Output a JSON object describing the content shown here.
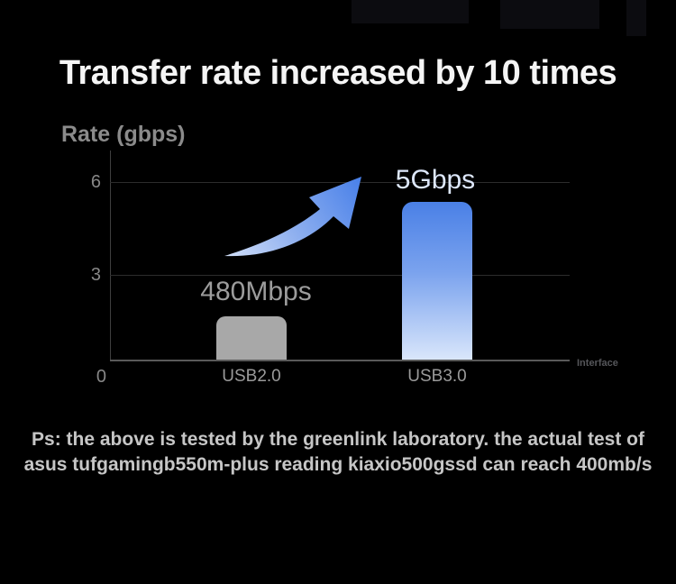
{
  "page": {
    "title": "Transfer rate increased by 10 times",
    "footer_line1": "Ps: the above is tested by the greenlink laboratory. the actual test of",
    "footer_line2": "asus tufgamingb550m-plus reading kiaxio500gssd can reach 400mb/s"
  },
  "chart_data": {
    "type": "bar",
    "title": "Transfer rate increased by 10 times",
    "ylabel": "Rate (gbps)",
    "xlabel": "Interface",
    "categories": [
      "USB2.0",
      "USB3.0"
    ],
    "values_gbps": [
      0.48,
      5
    ],
    "bar_value_labels": [
      "480Mbps",
      "5Gbps"
    ],
    "rendered_bar_heights_gbps": [
      1.4,
      5.1
    ],
    "yticks": [
      6,
      3,
      0
    ],
    "ylim": [
      0,
      6.8
    ],
    "grid": "horizontal gridlines at y=3 and y=6",
    "legend_position": "none",
    "bar_colors": {
      "usb2": "#a8a8a8",
      "usb3_gradient_top": "#4a80e6",
      "usb3_gradient_bottom": "#d9e6fb"
    },
    "annotation": "upward curved swoosh arrow from USB2.0 bar toward USB3.0 bar, light-blue to blue gradient"
  },
  "colors": {
    "background": "#000000",
    "title_text": "#f5f5f5",
    "axis_text": "#8b8b8b",
    "footer_text": "#c6c6c6",
    "arrow_light": "#dbe6fa",
    "arrow_dark": "#3d78e8"
  }
}
